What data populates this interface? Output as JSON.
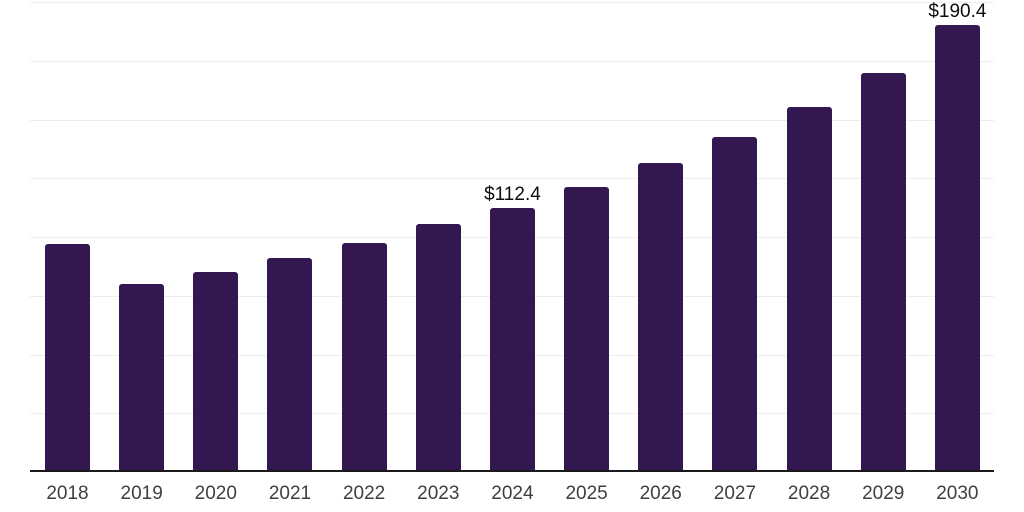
{
  "chart_data": {
    "type": "bar",
    "title": "",
    "xlabel": "",
    "ylabel": "",
    "categories": [
      "2018",
      "2019",
      "2020",
      "2021",
      "2022",
      "2023",
      "2024",
      "2025",
      "2026",
      "2027",
      "2028",
      "2029",
      "2030"
    ],
    "values": [
      97.2,
      80.2,
      85.2,
      91.1,
      97.5,
      105.4,
      112.4,
      121.3,
      131.7,
      142.7,
      155.4,
      169.9,
      190.4
    ],
    "data_labels": [
      "",
      "",
      "",
      "",
      "",
      "",
      "$112.4",
      "",
      "",
      "",
      "",
      "",
      "$190.4"
    ],
    "ylim": [
      0,
      200
    ],
    "gridline_step": 25,
    "grid": "horizontal",
    "legend_position": "none",
    "colors": {
      "bar": "#321751",
      "axis_line": "#1a1a1a",
      "gridline": "#ededed",
      "data_label_text": "#0d0d0d",
      "tick_label_text": "#3f3f3f",
      "background": "#ffffff"
    }
  }
}
